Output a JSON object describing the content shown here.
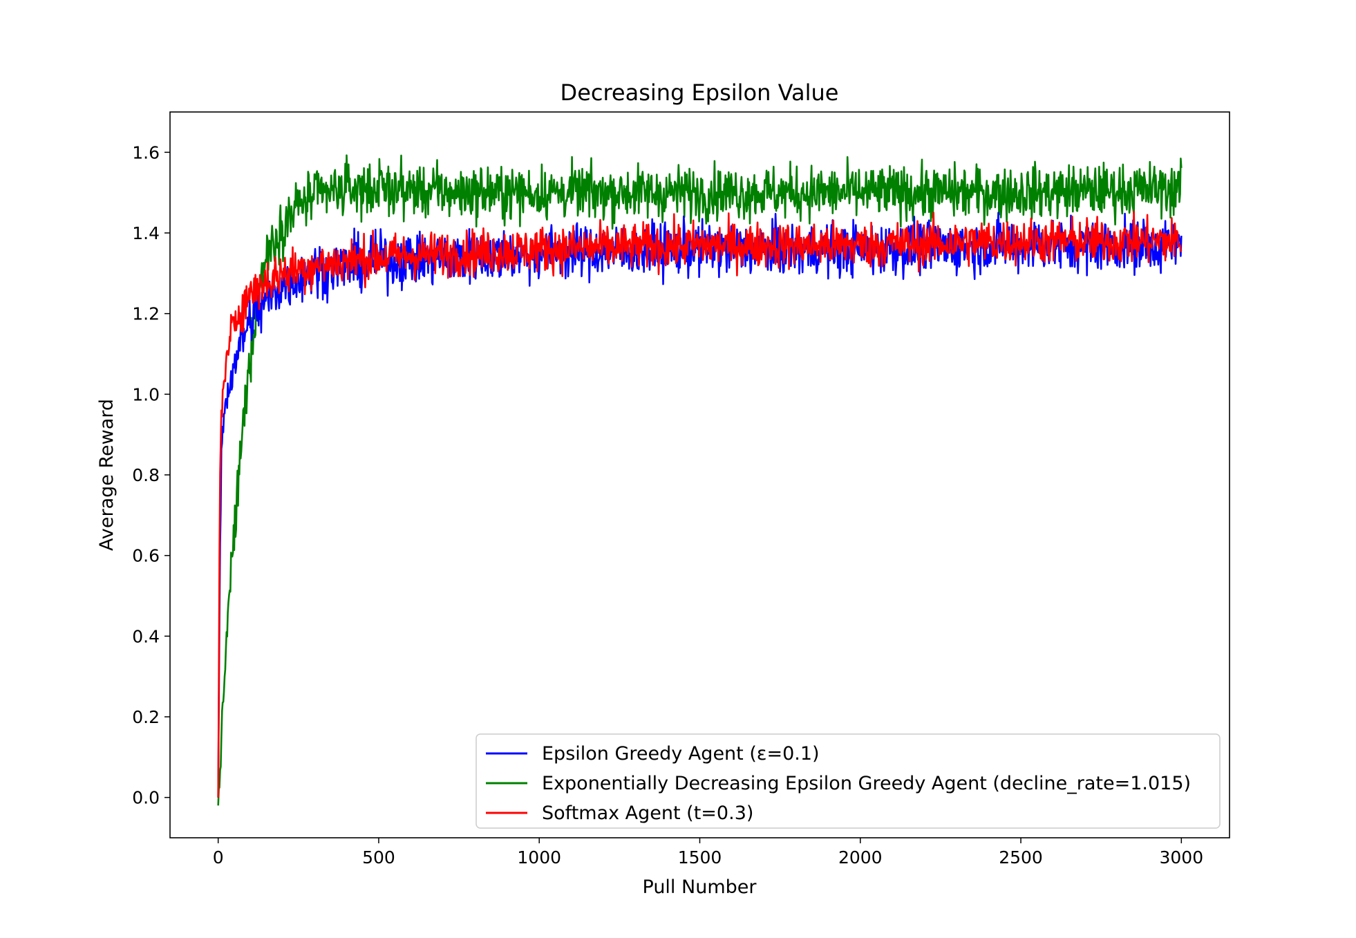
{
  "chart_data": {
    "type": "line",
    "title": "Decreasing Epsilon Value",
    "xlabel": "Pull Number",
    "ylabel": "Average Reward",
    "xlim": [
      -150,
      3150
    ],
    "ylim": [
      -0.1,
      1.7
    ],
    "xticks": [
      0,
      500,
      1000,
      1500,
      2000,
      2500,
      3000
    ],
    "xtick_labels": [
      "0",
      "500",
      "1000",
      "1500",
      "2000",
      "2500",
      "3000"
    ],
    "yticks": [
      0.0,
      0.2,
      0.4,
      0.6,
      0.8,
      1.0,
      1.2,
      1.4,
      1.6
    ],
    "ytick_labels": [
      "0.0",
      "0.2",
      "0.4",
      "0.6",
      "0.8",
      "1.0",
      "1.2",
      "1.4",
      "1.6"
    ],
    "grid": false,
    "legend_position": "lower-right",
    "series": [
      {
        "name": "Epsilon Greedy Agent (ε=0.1)",
        "color": "#0000ff",
        "x": [
          0,
          5,
          10,
          20,
          30,
          50,
          75,
          100,
          150,
          200,
          300,
          400,
          500,
          750,
          1000,
          1500,
          2000,
          2500,
          3000
        ],
        "y": [
          0.0,
          0.55,
          0.85,
          0.97,
          1.0,
          1.08,
          1.14,
          1.18,
          1.23,
          1.27,
          1.31,
          1.32,
          1.33,
          1.34,
          1.35,
          1.36,
          1.36,
          1.37,
          1.37
        ],
        "noise": 0.035
      },
      {
        "name": "Exponentially Decreasing Epsilon Greedy Agent (decline_rate=1.015)",
        "color": "#008000",
        "x": [
          0,
          5,
          10,
          20,
          30,
          50,
          75,
          100,
          125,
          150,
          200,
          250,
          300,
          400,
          500,
          750,
          1000,
          1500,
          2000,
          2500,
          3000
        ],
        "y": [
          -0.02,
          0.05,
          0.15,
          0.3,
          0.45,
          0.65,
          0.9,
          1.1,
          1.25,
          1.35,
          1.42,
          1.47,
          1.49,
          1.51,
          1.51,
          1.5,
          1.5,
          1.5,
          1.5,
          1.5,
          1.51
        ],
        "noise": 0.035
      },
      {
        "name": "Softmax Agent (t=0.3)",
        "color": "#ff0000",
        "x": [
          0,
          5,
          10,
          20,
          30,
          50,
          75,
          100,
          150,
          200,
          300,
          400,
          500,
          750,
          1000,
          1500,
          2000,
          2500,
          3000
        ],
        "y": [
          0.0,
          0.75,
          0.95,
          1.05,
          1.1,
          1.18,
          1.22,
          1.25,
          1.28,
          1.3,
          1.32,
          1.33,
          1.34,
          1.35,
          1.36,
          1.37,
          1.37,
          1.38,
          1.38
        ],
        "noise": 0.03
      }
    ]
  }
}
